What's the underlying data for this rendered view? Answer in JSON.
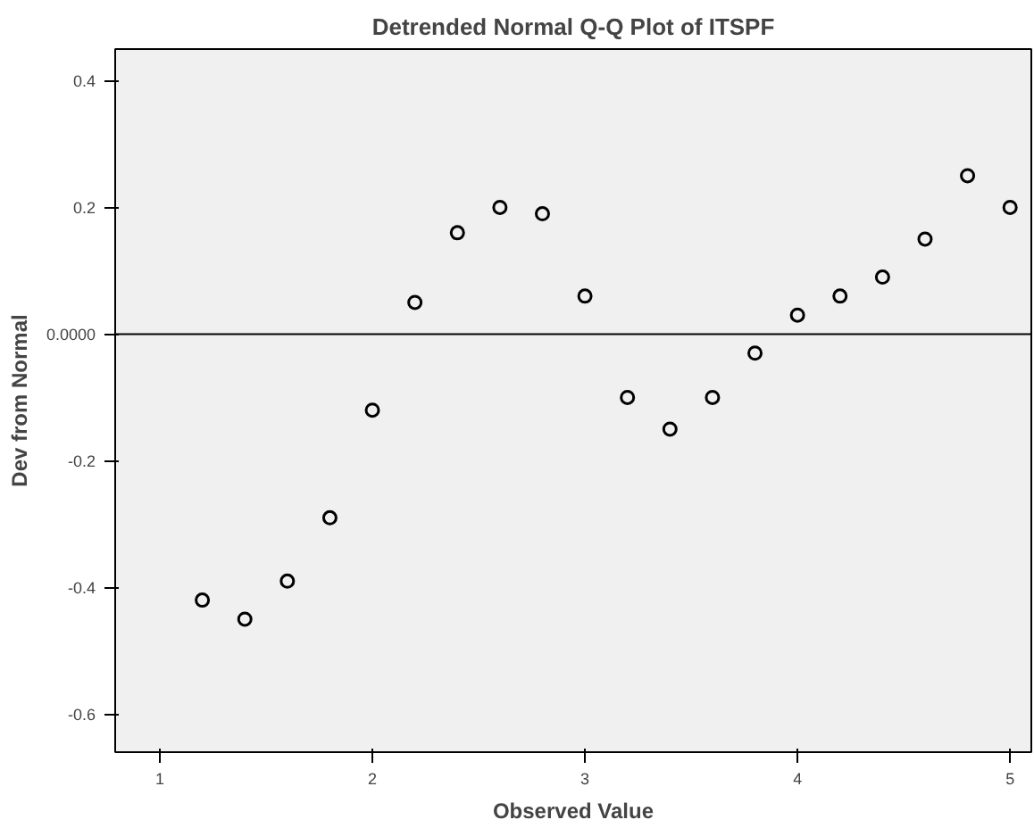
{
  "chart_data": {
    "type": "scatter",
    "title": "Detrended Normal Q-Q Plot of ITSPF",
    "xlabel": "Observed Value",
    "ylabel": "Dev from Normal",
    "x": [
      1.2,
      1.4,
      1.6,
      1.8,
      2.0,
      2.2,
      2.4,
      2.6,
      2.8,
      3.0,
      3.2,
      3.4,
      3.6,
      3.8,
      4.0,
      4.2,
      4.4,
      4.6,
      4.8,
      5.0
    ],
    "series": [
      {
        "color": "#000000",
        "values": [
          -0.42,
          -0.45,
          -0.39,
          -0.29,
          -0.12,
          0.05,
          0.16,
          0.2,
          0.19,
          0.06,
          -0.1,
          -0.15,
          -0.1,
          -0.03,
          0.03,
          0.06,
          0.09,
          0.15,
          0.25,
          0.2
        ]
      }
    ],
    "xlim": [
      0.79,
      5.1
    ],
    "ylim": [
      -0.66,
      0.45
    ],
    "xticks": [
      1,
      2,
      3,
      4,
      5
    ],
    "yticks": [
      {
        "value": -0.6,
        "label": "-0.6"
      },
      {
        "value": -0.4,
        "label": "-0.4"
      },
      {
        "value": -0.2,
        "label": "-0.2"
      },
      {
        "value": 0,
        "label": "0.0000"
      },
      {
        "value": 0.2,
        "label": "0.2"
      },
      {
        "value": 0.4,
        "label": "0.4"
      }
    ],
    "ref_lines": [
      {
        "axis": "y",
        "value": 0,
        "color": "#000000"
      }
    ],
    "marker": "circle",
    "grid": false
  }
}
